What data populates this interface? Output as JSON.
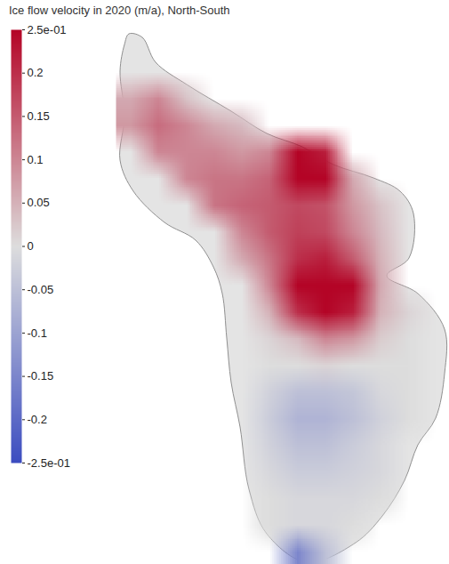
{
  "chart_data": {
    "type": "heatmap",
    "title": "Ice flow velocity in 2020 (m/a), North-South",
    "tick_labels": false,
    "cells": [
      [
        null,
        null,
        null,
        null,
        null,
        null,
        null,
        null,
        null,
        null,
        null,
        null
      ],
      [
        null,
        null,
        null,
        null,
        null,
        null,
        null,
        null,
        null,
        null,
        null,
        null
      ],
      [
        0.06,
        0.1,
        0.03,
        null,
        null,
        null,
        null,
        null,
        null,
        null,
        null,
        null
      ],
      [
        0.08,
        0.13,
        0.1,
        0.06,
        0.04,
        null,
        null,
        null,
        null,
        null,
        null,
        null
      ],
      [
        null,
        0.1,
        0.1,
        0.1,
        0.08,
        0.1,
        0.25,
        0.22,
        null,
        null,
        null,
        null
      ],
      [
        null,
        null,
        0.1,
        0.12,
        0.12,
        0.14,
        0.25,
        0.25,
        0.06,
        null,
        null,
        null
      ],
      [
        null,
        null,
        null,
        0.12,
        0.14,
        0.15,
        0.17,
        0.16,
        0.08,
        0.03,
        null,
        null
      ],
      [
        null,
        null,
        null,
        null,
        0.1,
        0.15,
        0.18,
        0.17,
        0.1,
        0.04,
        null,
        null
      ],
      [
        null,
        null,
        null,
        null,
        0.06,
        0.12,
        0.2,
        0.22,
        0.15,
        0.05,
        null,
        null
      ],
      [
        null,
        null,
        null,
        null,
        null,
        0.1,
        0.25,
        0.25,
        0.25,
        0.06,
        null,
        null
      ],
      [
        null,
        null,
        null,
        null,
        null,
        0.05,
        0.2,
        0.25,
        0.22,
        0.05,
        0.01,
        null
      ],
      [
        null,
        null,
        null,
        null,
        null,
        0.01,
        0.04,
        0.1,
        0.08,
        0.02,
        0,
        null
      ],
      [
        null,
        null,
        null,
        null,
        null,
        0,
        0,
        0.01,
        0,
        0,
        0,
        null
      ],
      [
        null,
        null,
        null,
        null,
        null,
        -0.02,
        -0.05,
        -0.05,
        -0.04,
        -0.01,
        0,
        null
      ],
      [
        null,
        null,
        null,
        null,
        null,
        -0.03,
        -0.07,
        -0.07,
        -0.05,
        -0.02,
        0,
        null
      ],
      [
        null,
        null,
        null,
        null,
        null,
        -0.02,
        -0.05,
        -0.05,
        -0.03,
        -0.01,
        null,
        null
      ],
      [
        null,
        null,
        null,
        null,
        null,
        -0.01,
        -0.03,
        -0.03,
        -0.02,
        -0.01,
        null,
        null
      ],
      [
        null,
        null,
        null,
        null,
        null,
        0,
        -0.01,
        -0.01,
        -0.01,
        0,
        null,
        null
      ],
      [
        null,
        null,
        null,
        null,
        null,
        0,
        -0.01,
        -0.01,
        0,
        null,
        null,
        null
      ],
      [
        null,
        null,
        null,
        null,
        null,
        null,
        -0.15,
        -0.05,
        null,
        null,
        null,
        null
      ]
    ],
    "colorbar": {
      "range": [
        -0.25,
        0.25
      ],
      "ticks": [
        {
          "value": -0.25,
          "label": "-2.5e-01"
        },
        -0.2,
        -0.15,
        -0.1,
        -0.05,
        0,
        0.05,
        0.1,
        0.15,
        0.2,
        {
          "value": 0.25,
          "label": "2.5e-01"
        }
      ]
    }
  }
}
